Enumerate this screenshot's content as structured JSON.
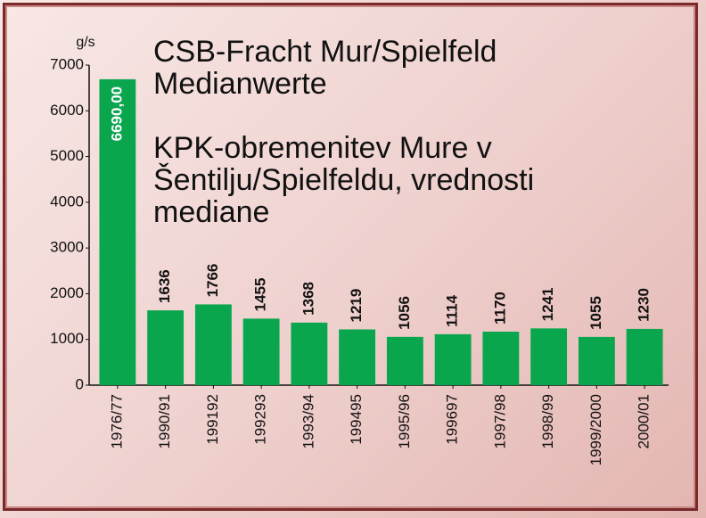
{
  "chart_data": {
    "type": "bar",
    "title": "CSB-Fracht Mur/Spielfeld Medianwerte",
    "subtitle": "KPK-obremenitev Mure v Šentilju/Spielfeldu, vrednosti mediane",
    "y_unit": "g/s",
    "categories": [
      "1976/77",
      "1990/91",
      "199192",
      "199293",
      "1993/94",
      "199495",
      "1995/96",
      "199697",
      "1997/98",
      "1998/99",
      "1999/2000",
      "2000/01"
    ],
    "values": [
      6690,
      1636,
      1766,
      1455,
      1368,
      1219,
      1056,
      1114,
      1170,
      1241,
      1055,
      1230
    ],
    "value_labels": [
      "6690,00",
      "1636",
      "1766",
      "1455",
      "1368",
      "1219",
      "1056",
      "1114",
      "1170",
      "1241",
      "1055",
      "1230"
    ],
    "color": "#0aa64e",
    "ylim": [
      0,
      7000
    ],
    "yticks": [
      0,
      1000,
      2000,
      3000,
      4000,
      5000,
      6000,
      7000
    ],
    "grid": false
  }
}
